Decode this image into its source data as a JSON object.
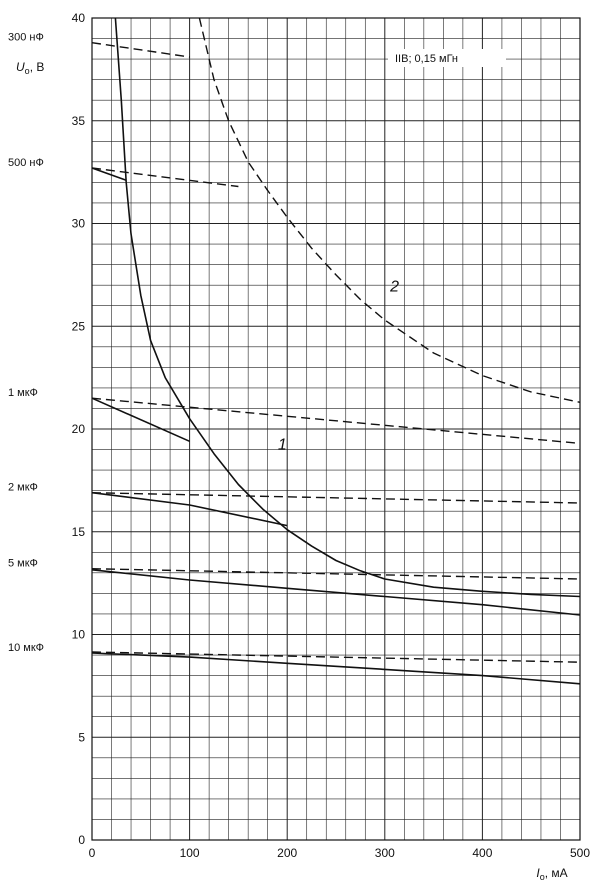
{
  "chart_data": {
    "type": "line",
    "note": "IIB; 0,15 мГн",
    "ylabel": {
      "var": "U",
      "sub": "o",
      "unit": ", В"
    },
    "xlabel": {
      "var": "I",
      "sub": "o",
      "unit": ", мА"
    },
    "xlim": [
      0,
      500
    ],
    "ylim": [
      0,
      40
    ],
    "x_ticks": [
      0,
      100,
      200,
      300,
      400,
      500
    ],
    "y_ticks": [
      0,
      5,
      10,
      15,
      20,
      25,
      30,
      35,
      40
    ],
    "grid": true,
    "capacitance_labels": [
      {
        "text": "300 нФ",
        "y": 38.8
      },
      {
        "text": "500 нФ",
        "y": 32.7
      },
      {
        "text": "1 мкФ",
        "y": 21.5
      },
      {
        "text": "2 мкФ",
        "y": 16.9
      },
      {
        "text": "5 мкФ",
        "y": 13.2
      },
      {
        "text": "10 мкФ",
        "y": 9.1
      }
    ],
    "curve_labels": [
      {
        "text": "1",
        "x": 195,
        "y": 19.0
      },
      {
        "text": "2",
        "x": 310,
        "y": 26.7
      }
    ],
    "series": [
      {
        "name": "1",
        "style": "solid",
        "points": [
          [
            24,
            40
          ],
          [
            30,
            36
          ],
          [
            35,
            32
          ],
          [
            40,
            29.5
          ],
          [
            50,
            26.5
          ],
          [
            60,
            24.3
          ],
          [
            75,
            22.5
          ],
          [
            100,
            20.5
          ],
          [
            125,
            18.8
          ],
          [
            150,
            17.3
          ],
          [
            175,
            16.1
          ],
          [
            200,
            15.1
          ],
          [
            225,
            14.3
          ],
          [
            250,
            13.6
          ],
          [
            275,
            13.1
          ],
          [
            300,
            12.7
          ],
          [
            350,
            12.3
          ],
          [
            400,
            12.1
          ],
          [
            450,
            11.95
          ],
          [
            500,
            11.85
          ]
        ]
      },
      {
        "name": "2",
        "style": "dashed",
        "points": [
          [
            110,
            40
          ],
          [
            125,
            37
          ],
          [
            140,
            35
          ],
          [
            160,
            33
          ],
          [
            180,
            31.6
          ],
          [
            200,
            30.3
          ],
          [
            225,
            28.8
          ],
          [
            250,
            27.5
          ],
          [
            275,
            26.3
          ],
          [
            300,
            25.3
          ],
          [
            350,
            23.7
          ],
          [
            400,
            22.6
          ],
          [
            450,
            21.8
          ],
          [
            500,
            21.3
          ]
        ]
      },
      {
        "name": "300 нФ",
        "style": "dashed",
        "points": [
          [
            0,
            38.8
          ],
          [
            100,
            38.1
          ]
        ]
      },
      {
        "name": "500 нФ",
        "style": "dashed",
        "points": [
          [
            0,
            32.7
          ],
          [
            150,
            31.8
          ]
        ]
      },
      {
        "name": "500 нФ",
        "style": "solid",
        "points": [
          [
            0,
            32.7
          ],
          [
            35,
            32.1
          ]
        ]
      },
      {
        "name": "1 мкФ",
        "style": "dashed",
        "points": [
          [
            0,
            21.5
          ],
          [
            500,
            19.3
          ]
        ]
      },
      {
        "name": "1 мкФ",
        "style": "solid",
        "points": [
          [
            0,
            21.5
          ],
          [
            100,
            19.4
          ]
        ]
      },
      {
        "name": "2 мкФ",
        "style": "dashed",
        "points": [
          [
            0,
            16.9
          ],
          [
            500,
            16.4
          ]
        ]
      },
      {
        "name": "2 мкФ",
        "style": "solid",
        "points": [
          [
            0,
            16.9
          ],
          [
            100,
            16.3
          ],
          [
            200,
            15.3
          ]
        ]
      },
      {
        "name": "5 мкФ",
        "style": "dashed",
        "points": [
          [
            0,
            13.2
          ],
          [
            500,
            12.7
          ]
        ]
      },
      {
        "name": "5 мкФ",
        "style": "solid",
        "points": [
          [
            0,
            13.15
          ],
          [
            100,
            12.65
          ],
          [
            200,
            12.25
          ],
          [
            300,
            11.85
          ],
          [
            400,
            11.45
          ],
          [
            500,
            10.95
          ]
        ]
      },
      {
        "name": "10 мкФ",
        "style": "dashed",
        "points": [
          [
            0,
            9.15
          ],
          [
            500,
            8.65
          ]
        ]
      },
      {
        "name": "10 мкФ",
        "style": "solid",
        "points": [
          [
            0,
            9.1
          ],
          [
            100,
            8.9
          ],
          [
            200,
            8.6
          ],
          [
            300,
            8.3
          ],
          [
            400,
            8.0
          ],
          [
            500,
            7.6
          ]
        ]
      }
    ]
  }
}
